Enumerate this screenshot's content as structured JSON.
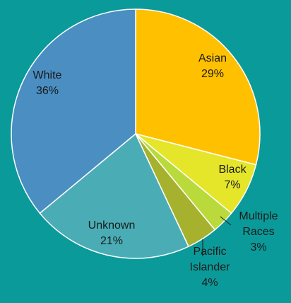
{
  "chart_data": {
    "type": "pie",
    "title": "",
    "legend": "none",
    "slices": [
      {
        "name": "Asian",
        "value": 29,
        "label": "29%",
        "color": "#ffc000"
      },
      {
        "name": "Black",
        "value": 7,
        "label": "7%",
        "color": "#e5e52a"
      },
      {
        "name": "Multiple Races",
        "value": 3,
        "label": "3%",
        "color": "#b9da3a"
      },
      {
        "name": "Pacific Islander",
        "value": 4,
        "label": "4%",
        "color": "#a6b22e"
      },
      {
        "name": "Unknown",
        "value": 21,
        "label": "21%",
        "color": "#4aadb6"
      },
      {
        "name": "White",
        "value": 36,
        "label": "36%",
        "color": "#4a8ec2"
      }
    ],
    "label_lines": {
      "Asian": [
        "Asian"
      ],
      "Black": [
        "Black"
      ],
      "Multiple Races": [
        "Multiple",
        "Races"
      ],
      "Pacific Islander": [
        "Pacific",
        "Islander"
      ],
      "Unknown": [
        "Unknown"
      ],
      "White": [
        "White"
      ]
    }
  }
}
